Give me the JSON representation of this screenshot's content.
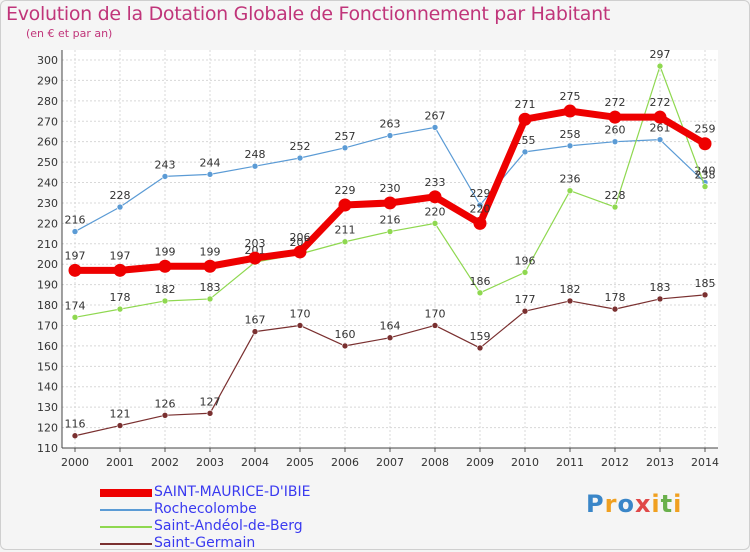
{
  "header": {
    "title": "Evolution de la Dotation Globale de Fonctionnement par Habitant",
    "subtitle": "(en € et par an)"
  },
  "logo": {
    "text": "Proxiti",
    "colors": [
      "#3a86c8",
      "#f0a020",
      "#e04848",
      "#6ab04c"
    ]
  },
  "chart_data": {
    "type": "line",
    "x": [
      "2000",
      "2001",
      "2002",
      "2003",
      "2004",
      "2005",
      "2006",
      "2007",
      "2008",
      "2009",
      "2010",
      "2011",
      "2012",
      "2013",
      "2014"
    ],
    "ylim": [
      110,
      300
    ],
    "yticks": [
      110,
      120,
      130,
      140,
      150,
      160,
      170,
      180,
      190,
      200,
      210,
      220,
      230,
      240,
      250,
      260,
      270,
      280,
      290,
      300
    ],
    "grid": true,
    "legend_position": "bottom-left",
    "series": [
      {
        "name": "SAINT-MAURICE-D'IBIE",
        "color": "#ee0000",
        "emphasis": "thick",
        "values": [
          197,
          197,
          199,
          199,
          203,
          206,
          229,
          230,
          233,
          220,
          271,
          275,
          272,
          272,
          259
        ],
        "labels": [
          "197",
          "197",
          "199",
          "199",
          "203",
          "206",
          "229",
          "230",
          "233",
          "220",
          "271",
          "275",
          "272",
          "272",
          "259"
        ]
      },
      {
        "name": "Rochecolombe",
        "color": "#5b9bd5",
        "emphasis": "thin",
        "values": [
          216,
          228,
          243,
          244,
          248,
          252,
          257,
          263,
          267,
          229,
          255,
          258,
          260,
          261,
          240
        ],
        "labels": [
          "216",
          "228",
          "243",
          "244",
          "248",
          "252",
          "257",
          "263",
          "267",
          "229",
          "255",
          "258",
          "260",
          "261",
          "240"
        ]
      },
      {
        "name": "Saint-Andéol-de-Berg",
        "color": "#8fd850",
        "emphasis": "thin",
        "values": [
          174,
          178,
          182,
          183,
          201,
          205,
          211,
          216,
          220,
          186,
          196,
          236,
          228,
          297,
          238
        ],
        "labels": [
          "174",
          "178",
          "182",
          "183",
          "201",
          "205",
          "211",
          "216",
          "220",
          "186",
          "196",
          "236",
          "228",
          "297",
          "238"
        ]
      },
      {
        "name": "Saint-Germain",
        "color": "#7a3030",
        "emphasis": "thin",
        "values": [
          116,
          121,
          126,
          127,
          167,
          170,
          160,
          164,
          170,
          159,
          177,
          182,
          178,
          183,
          185
        ],
        "labels": [
          "116",
          "121",
          "126",
          "127",
          "167",
          "170",
          "160",
          "164",
          "170",
          "159",
          "177",
          "182",
          "178",
          "183",
          "185"
        ]
      }
    ]
  }
}
